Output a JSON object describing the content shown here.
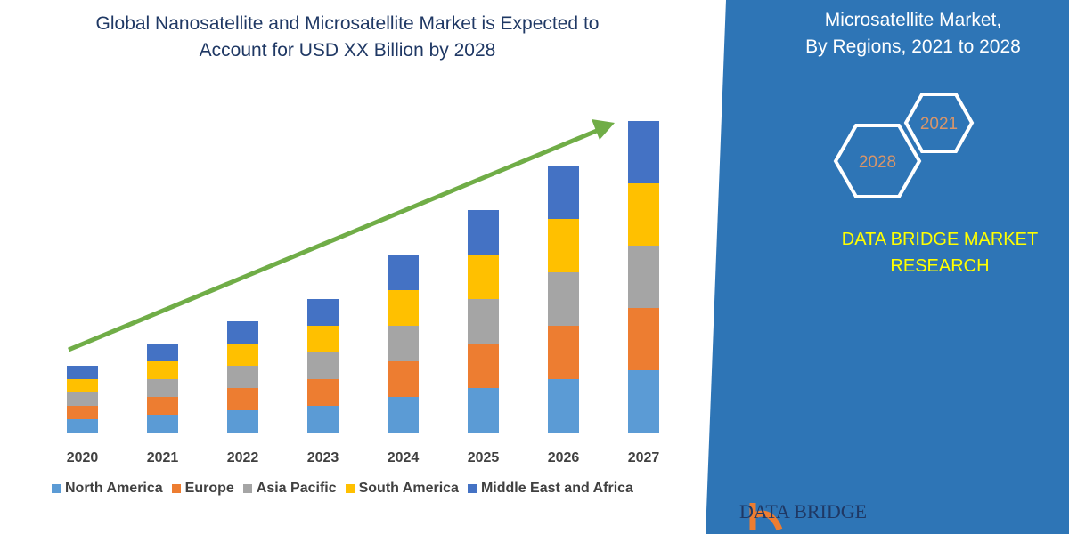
{
  "title_line1": "Global Nanosatellite and Microsatellite Market is Expected to",
  "title_line2": "Account for USD XX Billion by 2028",
  "panel": {
    "title_line1": "Microsatellite Market,",
    "title_line2": "By Regions, 2021 to 2028",
    "hex_labels": [
      "2021",
      "2028"
    ],
    "brand_line1": "DATA BRIDGE MARKET",
    "brand_line2": "RESEARCH",
    "logo_text": "DATA BRIDGE",
    "colors": {
      "panel": "#2e75b6",
      "brand": "#ffff00"
    }
  },
  "chart_data": {
    "type": "bar",
    "stacked": true,
    "categories": [
      "2020",
      "2021",
      "2022",
      "2023",
      "2024",
      "2025",
      "2026",
      "2027"
    ],
    "series": [
      {
        "name": "North America",
        "color": "#5b9bd5",
        "values": [
          1.5,
          2,
          2.5,
          3,
          4,
          5,
          6,
          7
        ]
      },
      {
        "name": "Europe",
        "color": "#ed7d31",
        "values": [
          1.5,
          2,
          2.5,
          3,
          4,
          5,
          6,
          7
        ]
      },
      {
        "name": "Asia Pacific",
        "color": "#a5a5a5",
        "values": [
          1.5,
          2,
          2.5,
          3,
          4,
          5,
          6,
          7
        ]
      },
      {
        "name": "South America",
        "color": "#ffc000",
        "values": [
          1.5,
          2,
          2.5,
          3,
          4,
          5,
          6,
          7
        ]
      },
      {
        "name": "Middle East and Africa",
        "color": "#4472c4",
        "values": [
          1.5,
          2,
          2.5,
          3,
          4,
          5,
          6,
          7
        ]
      }
    ],
    "legend": "bottom",
    "grid": false,
    "trend_arrow_color": "#70ad47"
  }
}
